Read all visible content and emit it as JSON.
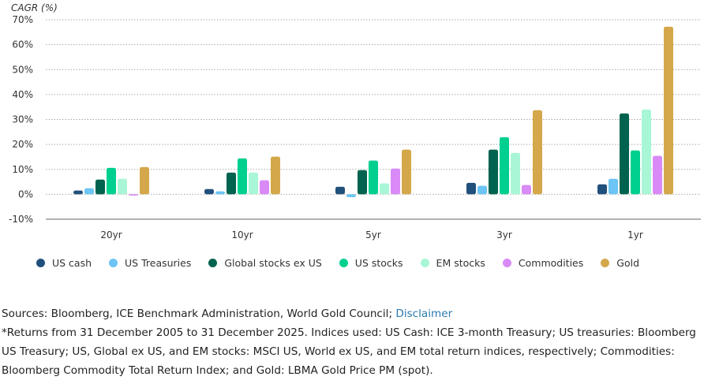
{
  "chart_data": {
    "type": "bar",
    "ylabel": "CAGR (%)",
    "ylim": [
      -10,
      70
    ],
    "yticks": [
      -10,
      0,
      10,
      20,
      30,
      40,
      50,
      60,
      70
    ],
    "ytick_labels": [
      "-10%",
      "0%",
      "10%",
      "20%",
      "30%",
      "40%",
      "50%",
      "60%",
      "70%"
    ],
    "categories": [
      "20yr",
      "10yr",
      "5yr",
      "3yr",
      "1yr"
    ],
    "legend_position": "bottom",
    "grid": true,
    "series": [
      {
        "name": "US cash",
        "color": "#22507c",
        "values": [
          1.5,
          2.1,
          3.0,
          4.6,
          4.0
        ]
      },
      {
        "name": "US Treasuries",
        "color": "#6cc5f4",
        "values": [
          2.4,
          1.2,
          -1.2,
          3.4,
          6.2
        ]
      },
      {
        "name": "Global stocks ex US",
        "color": "#00634f",
        "values": [
          5.9,
          8.7,
          9.7,
          17.9,
          32.4
        ]
      },
      {
        "name": "US stocks",
        "color": "#00d08f",
        "values": [
          10.6,
          14.4,
          13.5,
          22.9,
          17.6
        ]
      },
      {
        "name": "EM stocks",
        "color": "#a9f6d6",
        "values": [
          6.2,
          8.7,
          4.4,
          16.6,
          34.0
        ]
      },
      {
        "name": "Commodities",
        "color": "#d98af6",
        "values": [
          -0.5,
          5.6,
          10.3,
          3.7,
          15.4
        ]
      },
      {
        "name": "Gold",
        "color": "#d4a84a",
        "values": [
          10.9,
          15.1,
          17.9,
          33.7,
          67.2
        ]
      }
    ]
  },
  "notes": {
    "sources_prefix": "Sources: Bloomberg, ICE Benchmark Administration, World Gold Council; ",
    "disclaimer_link": "Disclaimer",
    "footnote": "*Returns from 31 December 2005 to 31 December 2025. Indices used: US Cash: ICE 3-month Treasury; US treasuries: Bloomberg US Treasury; US, Global ex US, and EM stocks: MSCI US, World ex US, and EM total return indices, respectively; Commodities: Bloomberg Commodity Total Return Index; and Gold: LBMA Gold Price PM (spot)."
  }
}
